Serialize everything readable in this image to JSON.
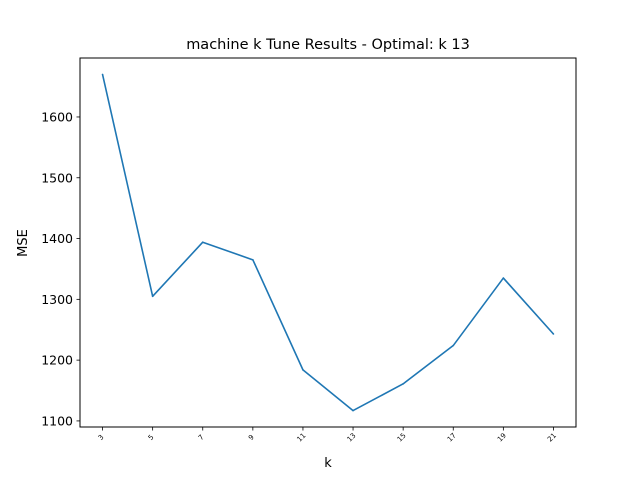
{
  "chart_data": {
    "type": "line",
    "title": "machine k Tune Results - Optimal: k 13",
    "xlabel": "k",
    "ylabel": "MSE",
    "x": [
      3,
      5,
      7,
      9,
      11,
      13,
      15,
      17,
      19,
      21
    ],
    "x_tick_labels": [
      "3",
      "5",
      "7",
      "9",
      "11",
      "13",
      "15",
      "17",
      "19",
      "21"
    ],
    "series": [
      {
        "values": [
          1670,
          1305,
          1394,
          1365,
          1184,
          1117,
          1161,
          1224,
          1335,
          1243
        ],
        "color": "#1f77b4"
      }
    ],
    "y_ticks": [
      1100,
      1200,
      1300,
      1400,
      1500,
      1600
    ],
    "xlim": [
      2.1,
      21.9
    ],
    "ylim": [
      1090,
      1697
    ],
    "grid": false,
    "legend": "none"
  }
}
